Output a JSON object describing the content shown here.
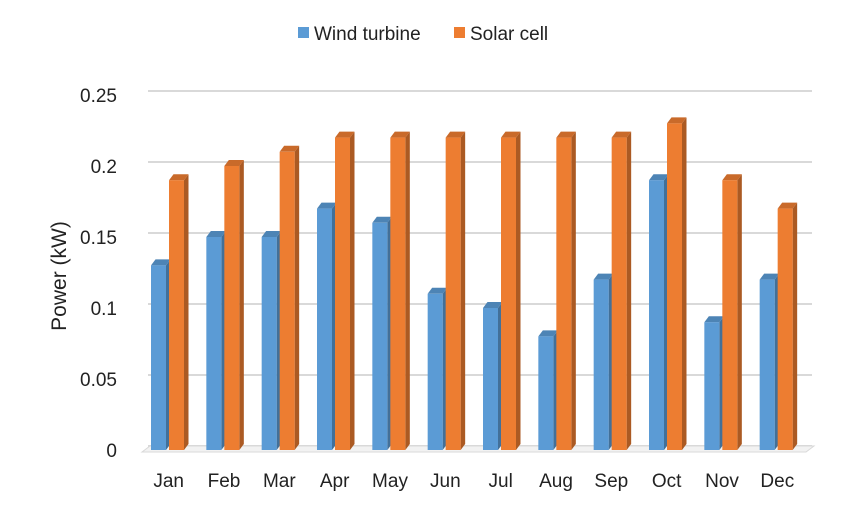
{
  "chart_data": {
    "type": "bar",
    "title": "",
    "xlabel": "",
    "ylabel": "Power (kW)",
    "ylim": [
      0,
      0.25
    ],
    "yticks": [
      "0",
      "0.05",
      "0.1",
      "0.15",
      "0.2",
      "0.25"
    ],
    "grid": true,
    "legend_position": "top",
    "categories": [
      "Jan",
      "Feb",
      "Mar",
      "Apr",
      "May",
      "Jun",
      "Jul",
      "Aug",
      "Sep",
      "Oct",
      "Nov",
      "Dec"
    ],
    "series": [
      {
        "name": "Wind turbine",
        "color": "#5b9bd5",
        "values": [
          0.13,
          0.15,
          0.15,
          0.17,
          0.16,
          0.11,
          0.1,
          0.08,
          0.12,
          0.19,
          0.09,
          0.12
        ]
      },
      {
        "name": "Solar cell",
        "color": "#ed7d31",
        "values": [
          0.19,
          0.2,
          0.21,
          0.22,
          0.22,
          0.22,
          0.22,
          0.22,
          0.22,
          0.23,
          0.19,
          0.17
        ]
      }
    ]
  }
}
